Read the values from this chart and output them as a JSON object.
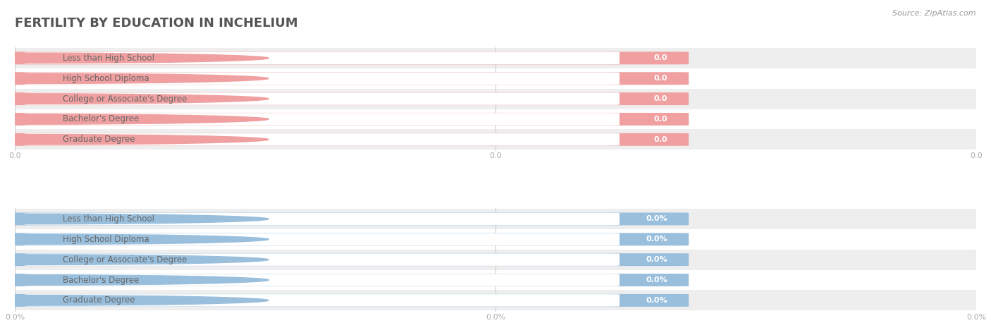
{
  "title": "FERTILITY BY EDUCATION IN INCHELIUM",
  "source": "Source: ZipAtlas.com",
  "categories": [
    "Less than High School",
    "High School Diploma",
    "College or Associate's Degree",
    "Bachelor's Degree",
    "Graduate Degree"
  ],
  "top_values": [
    0.0,
    0.0,
    0.0,
    0.0,
    0.0
  ],
  "bottom_values": [
    0.0,
    0.0,
    0.0,
    0.0,
    0.0
  ],
  "top_bar_color": "#f0a0a0",
  "bottom_bar_color": "#99bfdd",
  "text_color": "#666666",
  "value_color_top": "#e08080",
  "value_color_bottom": "#7aaac8",
  "bg_color": "#ffffff",
  "row_even_bg": "#eeeeee",
  "row_odd_bg": "#ffffff",
  "grid_color": "#cccccc",
  "title_color": "#555555",
  "source_color": "#999999",
  "axis_tick_color": "#aaaaaa",
  "title_fontsize": 13,
  "label_fontsize": 8.5,
  "value_fontsize": 8,
  "axis_fontsize": 8,
  "top_xtick_labels": [
    "0.0",
    "0.0",
    "0.0"
  ],
  "bottom_xtick_labels": [
    "0.0%",
    "0.0%",
    "0.0%"
  ]
}
